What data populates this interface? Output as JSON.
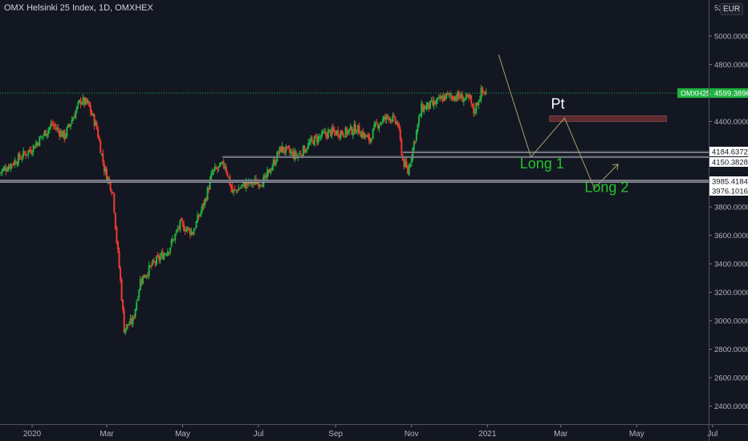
{
  "header": {
    "title": "OMX Helsinki 25 Index, 1D, OMXHEX",
    "currency": "EUR"
  },
  "colors": {
    "up": "#26a69a",
    "up_bright": "#1fb33f",
    "down": "#ef3b2f",
    "background": "#131722",
    "price_label": "#1fb33f",
    "annotation": "#22c32a",
    "path": "#a89f6a",
    "zone": "#5c2a2e"
  },
  "chart_data": {
    "type": "candlestick",
    "title": "OMX Helsinki 25 Index, 1D, OMXHEX",
    "symbol": "OMXH25",
    "last_price": "4599.3896",
    "ylim": [
      2300,
      5200
    ],
    "y_ticks": [
      "5000.0000",
      "4800.0000",
      "4400.0000",
      "3800.0000",
      "3600.0000",
      "3400.0000",
      "3200.0000",
      "3000.0000",
      "2800.0000",
      "2600.0000",
      "2400.0000"
    ],
    "y_tick_values": [
      5000,
      4800,
      4400,
      3800,
      3600,
      3400,
      3200,
      3000,
      2800,
      2600,
      2400
    ],
    "y_top_partial": "52",
    "x_ticks": [
      "2020",
      "Mar",
      "May",
      "Jul",
      "Sep",
      "Nov",
      "2021",
      "Mar",
      "May",
      "Jul"
    ],
    "x_tick_days": [
      0,
      60,
      121,
      182,
      244,
      305,
      366,
      425,
      486,
      547
    ],
    "x_unit": "days since 2020-01-01",
    "closes_approx": [
      [
        -26,
        4042
      ],
      [
        0,
        4211
      ],
      [
        16,
        4380
      ],
      [
        26,
        4296
      ],
      [
        39,
        4549
      ],
      [
        45,
        4520
      ],
      [
        52,
        4352
      ],
      [
        58,
        4070
      ],
      [
        65,
        3901
      ],
      [
        68,
        3563
      ],
      [
        71,
        3282
      ],
      [
        74,
        2944
      ],
      [
        81,
        3000
      ],
      [
        87,
        3282
      ],
      [
        97,
        3394
      ],
      [
        110,
        3507
      ],
      [
        119,
        3676
      ],
      [
        129,
        3620
      ],
      [
        139,
        3845
      ],
      [
        145,
        4042
      ],
      [
        155,
        4099
      ],
      [
        161,
        3901
      ],
      [
        171,
        3958
      ],
      [
        187,
        3986
      ],
      [
        200,
        4211
      ],
      [
        213,
        4155
      ],
      [
        226,
        4268
      ],
      [
        239,
        4324
      ],
      [
        252,
        4324
      ],
      [
        261,
        4352
      ],
      [
        271,
        4268
      ],
      [
        277,
        4380
      ],
      [
        287,
        4437
      ],
      [
        294,
        4380
      ],
      [
        298,
        4127
      ],
      [
        302,
        4042
      ],
      [
        306,
        4211
      ],
      [
        313,
        4493
      ],
      [
        323,
        4521
      ],
      [
        332,
        4577
      ],
      [
        342,
        4577
      ],
      [
        352,
        4549
      ],
      [
        355,
        4465
      ],
      [
        361,
        4606
      ],
      [
        365,
        4599
      ]
    ],
    "levels": [
      {
        "label": "4184.6372",
        "value": 4184.6372,
        "from_day": 298
      },
      {
        "label": "4150.3828",
        "value": 4150.3828,
        "from_day": 153
      },
      {
        "label": "3985.4184",
        "value": 3985.4184,
        "from_day": -30
      },
      {
        "label": "3976.1016",
        "value": 3976.1016,
        "from_day": -30
      }
    ],
    "target_zone": {
      "from_day": 416,
      "to_day": 510,
      "low": 4400,
      "high": 4440
    },
    "projection_path": [
      [
        375,
        4870
      ],
      [
        401,
        4150
      ],
      [
        428,
        4425
      ],
      [
        452,
        3930
      ],
      [
        471,
        4100
      ]
    ],
    "annotations": [
      {
        "text": "Pt",
        "day": 430,
        "price": 4490,
        "color": "#ffffff"
      },
      {
        "text": "Long 1",
        "day": 405,
        "price": 4070,
        "color": "#22c32a"
      },
      {
        "text": "Long 2",
        "day": 457,
        "price": 3905,
        "color": "#22c32a"
      }
    ]
  }
}
